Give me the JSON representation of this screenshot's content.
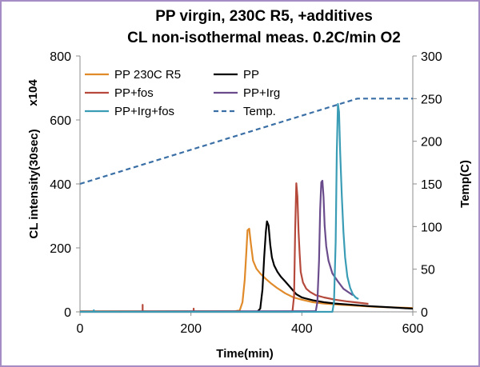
{
  "chart_data": {
    "type": "line",
    "title": [
      "PP virgin, 230C R5, +additives",
      "CL non-isothermal meas.  0.2C/min   O2"
    ],
    "xlabel": "Time(min)",
    "ylabel": "CL intensity(30sec)",
    "y2label": "Temp(C)",
    "multiplier_label": "x104",
    "xlim": [
      0,
      600
    ],
    "ylim": [
      0,
      800
    ],
    "y2lim": [
      0,
      300
    ],
    "xticks": [
      0,
      200,
      400,
      600
    ],
    "yticks": [
      0,
      200,
      400,
      600,
      800
    ],
    "y2ticks": [
      0,
      50,
      100,
      150,
      200,
      250,
      300
    ],
    "legend_position": "top-left",
    "series": [
      {
        "name": "PP 230C R5",
        "color": "#e08a2a",
        "axis": "left",
        "x": [
          0,
          280,
          288,
          293,
          297,
          300,
          302,
          305,
          308,
          312,
          318,
          325,
          335,
          345,
          355,
          370,
          385,
          400,
          420,
          440,
          470,
          500,
          530,
          560,
          600
        ],
        "y": [
          2,
          2,
          5,
          30,
          100,
          190,
          255,
          260,
          215,
          160,
          135,
          120,
          103,
          88,
          75,
          58,
          45,
          38,
          30,
          26,
          22,
          19,
          16,
          14,
          12
        ]
      },
      {
        "name": "PP",
        "color": "#000000",
        "axis": "left",
        "x": [
          0,
          320,
          325,
          329,
          332,
          335,
          337,
          340,
          343,
          346,
          350,
          356,
          362,
          370,
          380,
          390,
          400,
          420,
          440,
          460,
          490,
          520,
          560,
          600
        ],
        "y": [
          1,
          1,
          10,
          70,
          170,
          250,
          283,
          270,
          210,
          170,
          145,
          125,
          110,
          95,
          75,
          55,
          45,
          36,
          30,
          26,
          22,
          18,
          14,
          10
        ]
      },
      {
        "name": "PP+fos",
        "color": "#b54a3c",
        "axis": "left",
        "x": [
          0,
          113,
          113,
          113,
          205,
          205,
          205,
          383,
          386,
          388,
          390,
          392,
          394,
          396,
          398,
          402,
          408,
          415,
          425,
          440,
          460,
          480,
          500,
          520
        ],
        "y": [
          0,
          0,
          22,
          0,
          0,
          10,
          0,
          0,
          50,
          260,
          402,
          360,
          250,
          180,
          125,
          92,
          72,
          62,
          52,
          45,
          38,
          33,
          29,
          25
        ]
      },
      {
        "name": "PP+Irg",
        "color": "#6a4c8c",
        "axis": "left",
        "x": [
          0,
          425,
          428,
          431,
          433,
          435,
          437,
          439,
          441,
          444,
          448,
          455,
          465,
          475,
          485,
          492
        ],
        "y": [
          1,
          2,
          30,
          160,
          320,
          405,
          410,
          360,
          270,
          205,
          160,
          120,
          95,
          72,
          60,
          52
        ]
      },
      {
        "name": "PP+Irg+fos",
        "color": "#3a9db5",
        "axis": "left",
        "x": [
          0,
          25,
          25,
          25,
          455,
          458,
          461,
          463,
          465,
          467,
          469,
          472,
          475,
          478,
          482,
          487,
          492,
          497,
          502
        ],
        "y": [
          0,
          0,
          5,
          0,
          0,
          30,
          220,
          500,
          650,
          625,
          500,
          360,
          250,
          170,
          110,
          75,
          55,
          45,
          40
        ]
      },
      {
        "name": "Temp.",
        "color": "#3a6fa6",
        "axis": "right",
        "dashed": true,
        "x": [
          0,
          500,
          600
        ],
        "y": [
          150,
          250,
          250
        ]
      }
    ]
  }
}
